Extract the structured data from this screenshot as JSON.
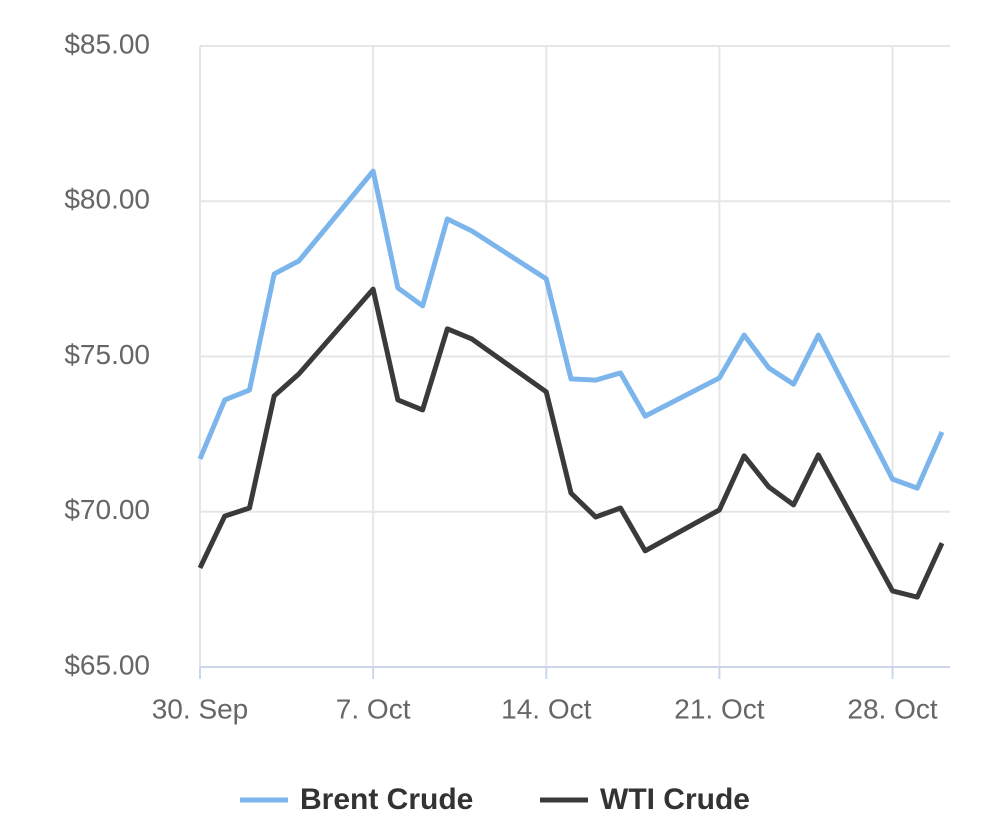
{
  "chart_data": {
    "type": "line",
    "x": [
      "30. Sep",
      "1. Oct",
      "2. Oct",
      "3. Oct",
      "4. Oct",
      "7. Oct",
      "8. Oct",
      "9. Oct",
      "10. Oct",
      "11. Oct",
      "14. Oct",
      "15. Oct",
      "16. Oct",
      "17. Oct",
      "18. Oct",
      "21. Oct",
      "22. Oct",
      "23. Oct",
      "24. Oct",
      "25. Oct",
      "28. Oct",
      "29. Oct",
      "30. Oct"
    ],
    "series": [
      {
        "name": "Brent Crude",
        "color": "#7cb5ec",
        "values": [
          71.7,
          73.6,
          73.92,
          77.66,
          78.08,
          80.97,
          77.21,
          76.63,
          79.43,
          79.04,
          77.5,
          74.28,
          74.24,
          74.47,
          73.08,
          74.31,
          75.69,
          74.63,
          74.11,
          75.69,
          71.05,
          70.76,
          72.57
        ]
      },
      {
        "name": "WTI Crude",
        "color": "#3a3a3c",
        "values": [
          68.19,
          69.86,
          70.12,
          73.73,
          74.44,
          77.17,
          73.6,
          73.28,
          75.89,
          75.56,
          73.86,
          70.6,
          69.83,
          70.12,
          68.74,
          70.06,
          71.8,
          70.8,
          70.22,
          71.83,
          67.45,
          67.25,
          68.99
        ]
      }
    ],
    "xlim": [
      "30. Sep",
      "30. Oct"
    ],
    "xticks": [
      "30. Sep",
      "7. Oct",
      "14. Oct",
      "21. Oct",
      "28. Oct"
    ],
    "ylim": [
      65,
      85
    ],
    "yticks": [
      {
        "value": 65,
        "label": "$65.00"
      },
      {
        "value": 70,
        "label": "$70.00"
      },
      {
        "value": 75,
        "label": "$75.00"
      },
      {
        "value": 80,
        "label": "$80.00"
      },
      {
        "value": 85,
        "label": "$85.00"
      }
    ],
    "grid": true,
    "legend": "bottom"
  }
}
